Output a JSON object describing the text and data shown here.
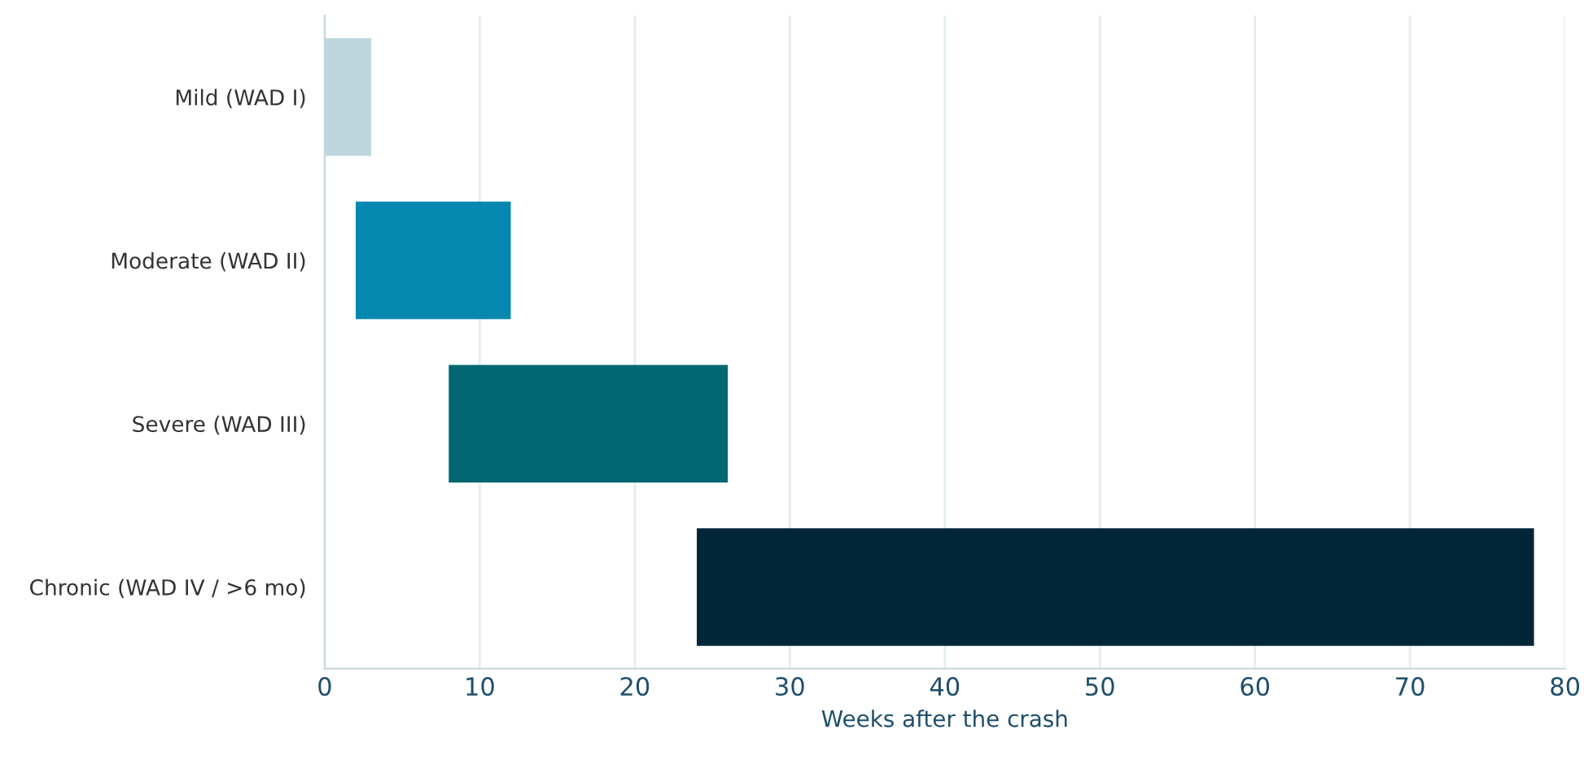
{
  "chart_data": {
    "type": "bar",
    "orientation": "horizontal",
    "xlabel": "Weeks after the crash",
    "categories": [
      "Mild (WAD I)",
      "Moderate (WAD II)",
      "Severe (WAD III)",
      "Chronic (WAD IV / >6 mo)"
    ],
    "base": [
      0,
      2,
      8,
      24
    ],
    "values": [
      3,
      10,
      18,
      54
    ],
    "colors": [
      "#bcd6dc",
      "#0588b0",
      "#006670",
      "#002638"
    ],
    "xlim": [
      0,
      80
    ],
    "xticks": [
      0,
      10,
      20,
      30,
      40,
      50,
      60,
      70,
      80
    ],
    "grid": "x"
  }
}
